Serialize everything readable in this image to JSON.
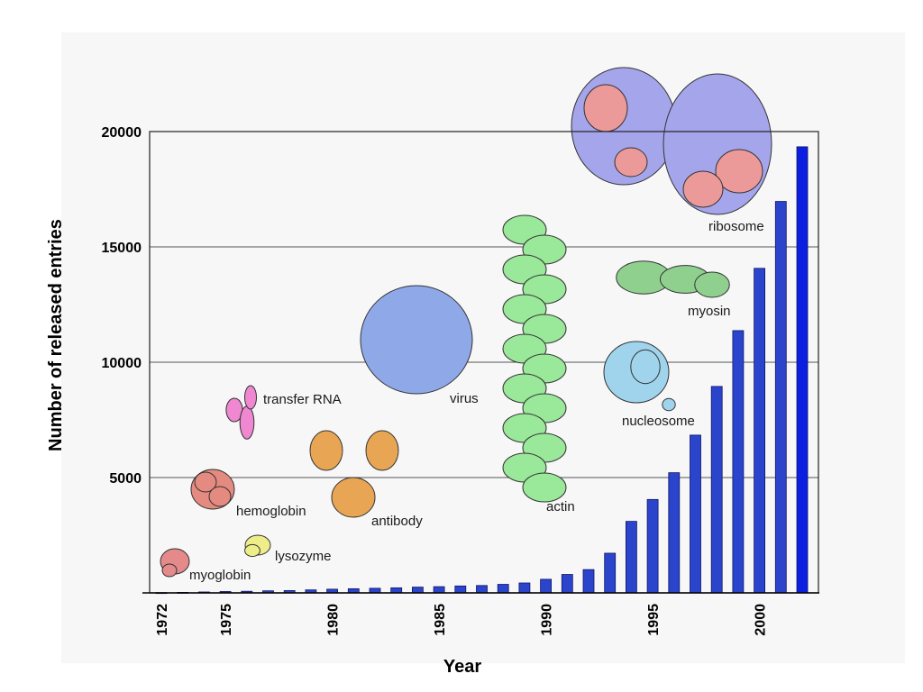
{
  "chart_data": {
    "type": "bar",
    "xlabel": "Year",
    "ylabel": "Number of released entries",
    "ylim": [
      0,
      20000
    ],
    "yticks": [
      5000,
      10000,
      15000,
      20000
    ],
    "xtick_labels": [
      "1972",
      "1975",
      "1980",
      "1985",
      "1990",
      "1995",
      "2000"
    ],
    "grid": true,
    "categories": [
      1972,
      1973,
      1974,
      1975,
      1976,
      1977,
      1978,
      1979,
      1980,
      1981,
      1982,
      1983,
      1984,
      1985,
      1986,
      1987,
      1988,
      1989,
      1990,
      1991,
      1992,
      1993,
      1994,
      1995,
      1996,
      1997,
      1998,
      1999,
      2000,
      2001,
      2002
    ],
    "values": [
      13,
      23,
      40,
      60,
      70,
      90,
      100,
      130,
      160,
      180,
      200,
      220,
      250,
      270,
      300,
      320,
      370,
      430,
      590,
      800,
      1010,
      1720,
      3100,
      4050,
      5210,
      6840,
      8950,
      11370,
      14070,
      16970,
      19340
    ],
    "bar_color": "#2b44cc",
    "highlight_color": "#0a1fe0",
    "annotations": [
      {
        "label": "myoglobin",
        "color": "#e58a8a"
      },
      {
        "label": "lysozyme",
        "color": "#eded8a"
      },
      {
        "label": "hemoglobin",
        "color": "#e58a80"
      },
      {
        "label": "transfer RNA",
        "color": "#ef88d0"
      },
      {
        "label": "antibody",
        "color": "#e8a655"
      },
      {
        "label": "virus",
        "color": "#8fa9e8"
      },
      {
        "label": "actin",
        "color": "#9ae89a"
      },
      {
        "label": "nucleosome",
        "color": "#9fd4ec"
      },
      {
        "label": "myosin",
        "color": "#8fd08f"
      },
      {
        "label": "ribosome",
        "color": "#9a9ae8"
      }
    ]
  }
}
